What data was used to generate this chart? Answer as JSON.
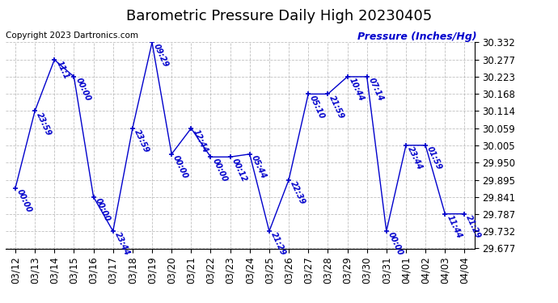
{
  "title": "Barometric Pressure Daily High 20230405",
  "ylabel": "Pressure (Inches/Hg)",
  "copyright": "Copyright 2023 Dartronics.com",
  "line_color": "#0000cc",
  "background_color": "#ffffff",
  "grid_color": "#b0b0b0",
  "ylim": [
    29.677,
    30.332
  ],
  "yticks": [
    29.677,
    29.732,
    29.787,
    29.841,
    29.895,
    29.95,
    30.005,
    30.059,
    30.114,
    30.168,
    30.223,
    30.277,
    30.332
  ],
  "dates": [
    "03/12",
    "03/13",
    "03/14",
    "03/15",
    "03/16",
    "03/17",
    "03/18",
    "03/19",
    "03/20",
    "03/21",
    "03/22",
    "03/23",
    "03/24",
    "03/25",
    "03/26",
    "03/27",
    "03/28",
    "03/29",
    "03/30",
    "03/31",
    "04/01",
    "04/02",
    "04/03",
    "04/04"
  ],
  "values": [
    29.869,
    30.114,
    30.277,
    30.223,
    29.841,
    29.732,
    30.059,
    30.332,
    29.977,
    30.059,
    29.968,
    29.968,
    29.977,
    29.732,
    29.895,
    30.168,
    30.168,
    30.223,
    30.223,
    29.732,
    30.005,
    30.005,
    29.787,
    29.787
  ],
  "labels": [
    "00:00",
    "23:59",
    "11:1",
    "00:00",
    "00:00",
    "23:44",
    "23:59",
    "09:29",
    "00:00",
    "12:44",
    "00:00",
    "00:12",
    "05:44",
    "21:29",
    "22:39",
    "05:10",
    "21:59",
    "10:44",
    "07:14",
    "00:00",
    "23:44",
    "01:59",
    "11:44",
    "21:29"
  ],
  "title_fontsize": 13,
  "label_fontsize": 9,
  "tick_fontsize": 8.5,
  "copyright_fontsize": 7.5,
  "annot_fontsize": 7
}
